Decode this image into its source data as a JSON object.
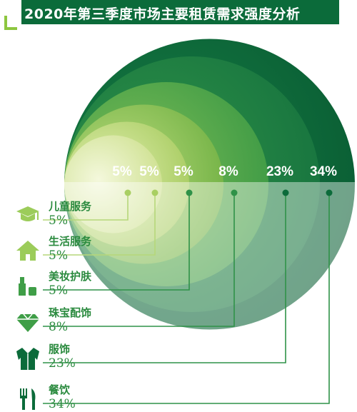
{
  "title": "2020年第三季度市场主要租赁需求强度分析",
  "colors": {
    "title_bg": "#0b6b3a",
    "accent_green": "#2a8a3e",
    "corner": "#8dc63f"
  },
  "chart_data": {
    "type": "nested-circle",
    "title": "2020年第三季度市场主要租赁需求强度分析",
    "categories": [
      "儿童服务",
      "生活服务",
      "美妆护肤",
      "珠宝配饰",
      "服饰",
      "餐饮"
    ],
    "values_display": [
      "5%",
      "5%",
      "5%",
      "8%",
      "23%",
      "34%"
    ],
    "values": [
      5,
      5,
      5,
      8,
      23,
      34
    ],
    "icons": [
      "graduation-cap-icon",
      "house-icon",
      "cosmetics-icon",
      "diamond-icon",
      "suit-icon",
      "fork-knife-icon"
    ]
  }
}
